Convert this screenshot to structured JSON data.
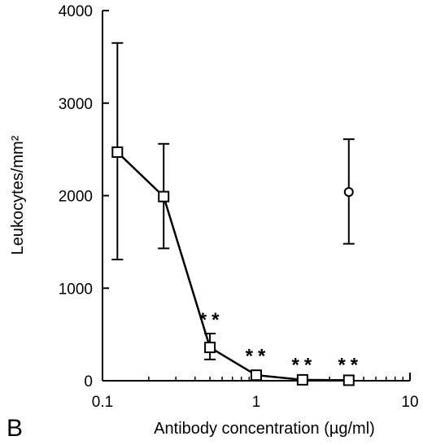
{
  "panel_label": "B",
  "chart_data": {
    "type": "scatter",
    "xlabel": "Antibody concentration (µg/ml)",
    "ylabel": "Leukocytes/mm²",
    "xscale": "log",
    "xlim": [
      0.1,
      10
    ],
    "ylim": [
      0,
      4000
    ],
    "x_ticks": [
      0.1,
      1,
      10
    ],
    "x_tick_labels": [
      "0.1",
      "1",
      "10"
    ],
    "y_ticks": [
      0,
      1000,
      2000,
      3000,
      4000
    ],
    "y_tick_labels": [
      "0",
      "1000",
      "2000",
      "3000",
      "4000"
    ],
    "grid": false,
    "series": [
      {
        "marker": "open-square",
        "connected": true,
        "points": [
          {
            "x": 0.125,
            "y": 2470,
            "err_low": 1310,
            "err_high": 3650
          },
          {
            "x": 0.25,
            "y": 1990,
            "err_low": 1430,
            "err_high": 2560
          },
          {
            "x": 0.5,
            "y": 360,
            "err_low": 230,
            "err_high": 510
          },
          {
            "x": 1,
            "y": 60
          },
          {
            "x": 2,
            "y": 10
          },
          {
            "x": 4,
            "y": 5
          }
        ]
      },
      {
        "marker": "open-circle",
        "connected": false,
        "points": [
          {
            "x": 4,
            "y": 2040,
            "err_low": 1480,
            "err_high": 2610
          }
        ]
      }
    ],
    "annotations": [
      {
        "text": "**",
        "x": 0.5,
        "y": 660
      },
      {
        "text": "**",
        "x": 1,
        "y": 270
      },
      {
        "text": "**",
        "x": 2,
        "y": 170
      },
      {
        "text": "**",
        "x": 4,
        "y": 170
      }
    ]
  }
}
